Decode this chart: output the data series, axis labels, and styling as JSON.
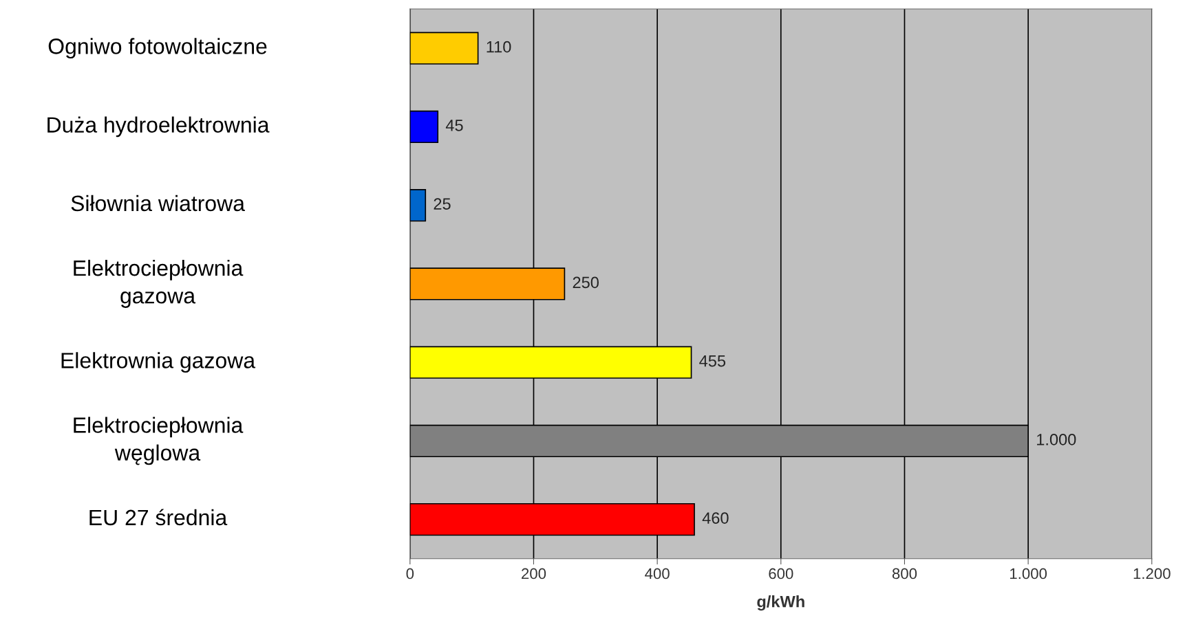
{
  "chart_data": {
    "type": "bar",
    "orientation": "horizontal",
    "xlabel": "g/kWh",
    "categories": [
      "Ogniwo fotowoltaiczne",
      "Duża hydroelektrownia",
      "Siłownia wiatrowa",
      "Elektrociepłownia\ngazowa",
      "Elektrownia gazowa",
      "Elektrociepłownia\nwęglowa",
      "EU 27 średnia"
    ],
    "values": [
      110,
      45,
      25,
      250,
      455,
      1000,
      460
    ],
    "value_labels": [
      "110",
      "45",
      "25",
      "250",
      "455",
      "1.000",
      "460"
    ],
    "colors": [
      "#ffcc00",
      "#0000ff",
      "#0066cc",
      "#ff9900",
      "#ffff00",
      "#808080",
      "#ff0000"
    ],
    "xlim": [
      0,
      1200
    ],
    "xticks": [
      0,
      200,
      400,
      600,
      800,
      {
        "value": 1000,
        "label": "1.000"
      },
      {
        "value": 1200,
        "label": "1.200"
      }
    ],
    "grid": "x"
  }
}
